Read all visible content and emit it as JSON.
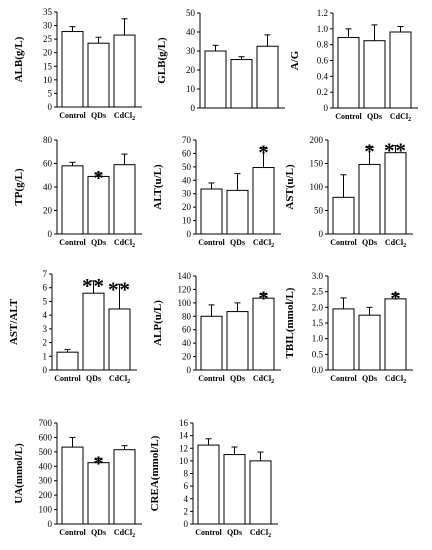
{
  "chart_data": [
    {
      "type": "bar",
      "ylabel": "ALB(g/L)",
      "ylim": [
        0,
        35
      ],
      "yticks": [
        0,
        5,
        10,
        15,
        20,
        25,
        30,
        35
      ],
      "tick_labels": [
        "0",
        "5",
        "10",
        "15",
        "20",
        "25",
        "30",
        "35"
      ],
      "categories": [
        "Control",
        "QDs",
        "CdCl2"
      ],
      "values": [
        27.8,
        23.5,
        26.5
      ],
      "errors": [
        1.8,
        2.2,
        6.0
      ],
      "annotations": [
        "",
        "",
        ""
      ]
    },
    {
      "type": "bar",
      "ylabel": "GLB(g/L)",
      "ylim": [
        0,
        50
      ],
      "yticks": [
        0,
        10,
        20,
        30,
        40,
        50
      ],
      "tick_labels": [
        "0",
        "10",
        "20",
        "30",
        "40",
        "50"
      ],
      "categories": [
        "",
        "",
        ""
      ],
      "values": [
        30.0,
        25.5,
        32.5
      ],
      "errors": [
        3.0,
        1.5,
        6.0
      ],
      "annotations": [
        "",
        "",
        ""
      ]
    },
    {
      "type": "bar",
      "ylabel": "A/G",
      "ylim": [
        0,
        1.2
      ],
      "yticks": [
        0,
        0.2,
        0.4,
        0.6,
        0.8,
        1.0,
        1.2
      ],
      "tick_labels": [
        "0",
        "0.2",
        "0.4",
        "0.6",
        "0.8",
        "1.0",
        "1.2"
      ],
      "categories": [
        "Control",
        "QDs",
        "CdCl2"
      ],
      "values": [
        0.89,
        0.85,
        0.96
      ],
      "errors": [
        0.11,
        0.2,
        0.07
      ],
      "annotations": [
        "",
        "",
        ""
      ]
    },
    {
      "type": "bar",
      "ylabel": "TP(g/L)",
      "ylim": [
        0,
        80
      ],
      "yticks": [
        0,
        20,
        40,
        60,
        80
      ],
      "tick_labels": [
        "0",
        "20",
        "40",
        "60",
        "80"
      ],
      "categories": [
        "Control",
        "QDs",
        "CdCl2"
      ],
      "values": [
        58,
        49,
        59
      ],
      "errors": [
        3,
        3,
        9
      ],
      "annotations": [
        "",
        "*",
        ""
      ]
    },
    {
      "type": "bar",
      "ylabel": "ALT(u/L)",
      "ylim": [
        0,
        70
      ],
      "yticks": [
        0,
        10,
        20,
        30,
        40,
        50,
        60,
        70
      ],
      "tick_labels": [
        "0",
        "10",
        "20",
        "30",
        "40",
        "50",
        "60",
        "70"
      ],
      "categories": [
        "Control",
        "QDs",
        "CdCl2"
      ],
      "values": [
        33.5,
        32.5,
        49.5
      ],
      "errors": [
        4.5,
        12.5,
        15.0
      ],
      "annotations": [
        "",
        "",
        "*"
      ]
    },
    {
      "type": "bar",
      "ylabel": "AST(u/L)",
      "ylim": [
        0,
        200
      ],
      "yticks": [
        0,
        50,
        100,
        150,
        200
      ],
      "tick_labels": [
        "0",
        "50",
        "100",
        "150",
        "200"
      ],
      "categories": [
        "Control",
        "QDs",
        "CdCl2"
      ],
      "values": [
        78,
        148,
        173
      ],
      "errors": [
        48,
        38,
        15
      ],
      "annotations": [
        "",
        "*",
        "**"
      ]
    },
    {
      "type": "bar",
      "ylabel": "AST/ALT",
      "ylim": [
        0,
        7
      ],
      "yticks": [
        0,
        1,
        2,
        3,
        4,
        5,
        6,
        7
      ],
      "tick_labels": [
        "0",
        "1",
        "2",
        "3",
        "4",
        "5",
        "6",
        "7"
      ],
      "categories": [
        "Control",
        "QDs",
        "CdCl2"
      ],
      "values": [
        1.3,
        5.6,
        4.45
      ],
      "errors": [
        0.2,
        0.9,
        1.8
      ],
      "annotations": [
        "",
        "**",
        "**"
      ]
    },
    {
      "type": "bar",
      "ylabel": "ALP(u/L)",
      "ylim": [
        0,
        140
      ],
      "yticks": [
        0,
        20,
        40,
        60,
        80,
        100,
        120,
        140
      ],
      "tick_labels": [
        "0",
        "20",
        "40",
        "60",
        "80",
        "100",
        "120",
        "140"
      ],
      "categories": [
        "Control",
        "QDs",
        "CdCl2"
      ],
      "values": [
        80,
        87,
        107
      ],
      "errors": [
        17,
        13,
        7
      ],
      "annotations": [
        "",
        "",
        "*"
      ]
    },
    {
      "type": "bar",
      "ylabel": "TBIL(mmol/L)",
      "ylim": [
        0,
        3.0
      ],
      "yticks": [
        0,
        0.5,
        1.0,
        1.5,
        2.0,
        2.5,
        3.0
      ],
      "tick_labels": [
        "0.0",
        "0.5",
        "1.0",
        "1.5",
        "2.0",
        "2.5",
        "3.0"
      ],
      "categories": [
        "Control",
        "QDs",
        "CdCl2"
      ],
      "values": [
        1.95,
        1.75,
        2.27
      ],
      "errors": [
        0.35,
        0.25,
        0.17
      ],
      "annotations": [
        "",
        "",
        "*"
      ]
    },
    {
      "type": "bar",
      "ylabel": "UA(mmol/L)",
      "ylim": [
        0,
        700
      ],
      "yticks": [
        0,
        100,
        200,
        300,
        400,
        500,
        600,
        700
      ],
      "tick_labels": [
        "0",
        "100",
        "200",
        "300",
        "400",
        "500",
        "600",
        "700"
      ],
      "categories": [
        "Control",
        "QDs",
        "CdCl2"
      ],
      "values": [
        533,
        425,
        515
      ],
      "errors": [
        67,
        30,
        28
      ],
      "annotations": [
        "",
        "*",
        ""
      ]
    },
    {
      "type": "bar",
      "ylabel": "CREA(mmol/L)",
      "ylim": [
        0,
        16
      ],
      "yticks": [
        0,
        2,
        4,
        6,
        8,
        10,
        12,
        14,
        16
      ],
      "tick_labels": [
        "0",
        "2",
        "4",
        "6",
        "8",
        "10",
        "12",
        "14",
        "16"
      ],
      "categories": [
        "Control",
        "QDs",
        "CdCl2"
      ],
      "values": [
        12.5,
        11.0,
        10.0
      ],
      "errors": [
        1.0,
        1.2,
        1.4
      ],
      "annotations": [
        "",
        "",
        ""
      ]
    }
  ]
}
